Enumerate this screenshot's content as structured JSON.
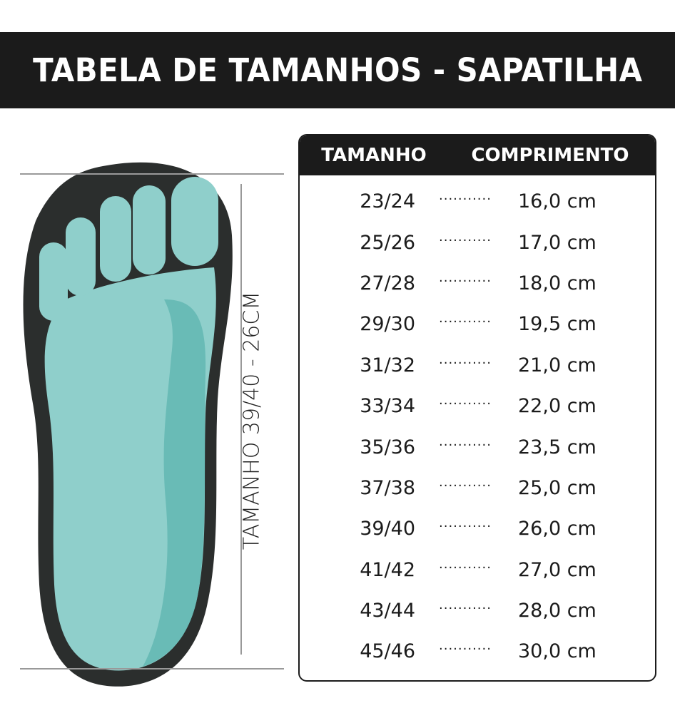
{
  "title": "TABELA DE TAMANHOS - SAPATILHA",
  "measurement_label": "TAMANHO 39/40 - 26CM",
  "colors": {
    "banner": "#1b1b1b",
    "insole": "#8fcfcb",
    "sole": "#2b2e2d"
  },
  "table": {
    "headers": {
      "size": "TAMANHO",
      "length": "COMPRIMENTO"
    },
    "separator": "...........",
    "rows": [
      {
        "size": "23/24",
        "length": "16,0 cm"
      },
      {
        "size": "25/26",
        "length": "17,0 cm"
      },
      {
        "size": "27/28",
        "length": "18,0 cm"
      },
      {
        "size": "29/30",
        "length": "19,5 cm"
      },
      {
        "size": "31/32",
        "length": "21,0 cm"
      },
      {
        "size": "33/34",
        "length": "22,0 cm"
      },
      {
        "size": "35/36",
        "length": "23,5 cm"
      },
      {
        "size": "37/38",
        "length": "25,0 cm"
      },
      {
        "size": "39/40",
        "length": "26,0 cm"
      },
      {
        "size": "41/42",
        "length": "27,0 cm"
      },
      {
        "size": "43/44",
        "length": "28,0 cm"
      },
      {
        "size": "45/46",
        "length": "30,0 cm"
      }
    ]
  }
}
